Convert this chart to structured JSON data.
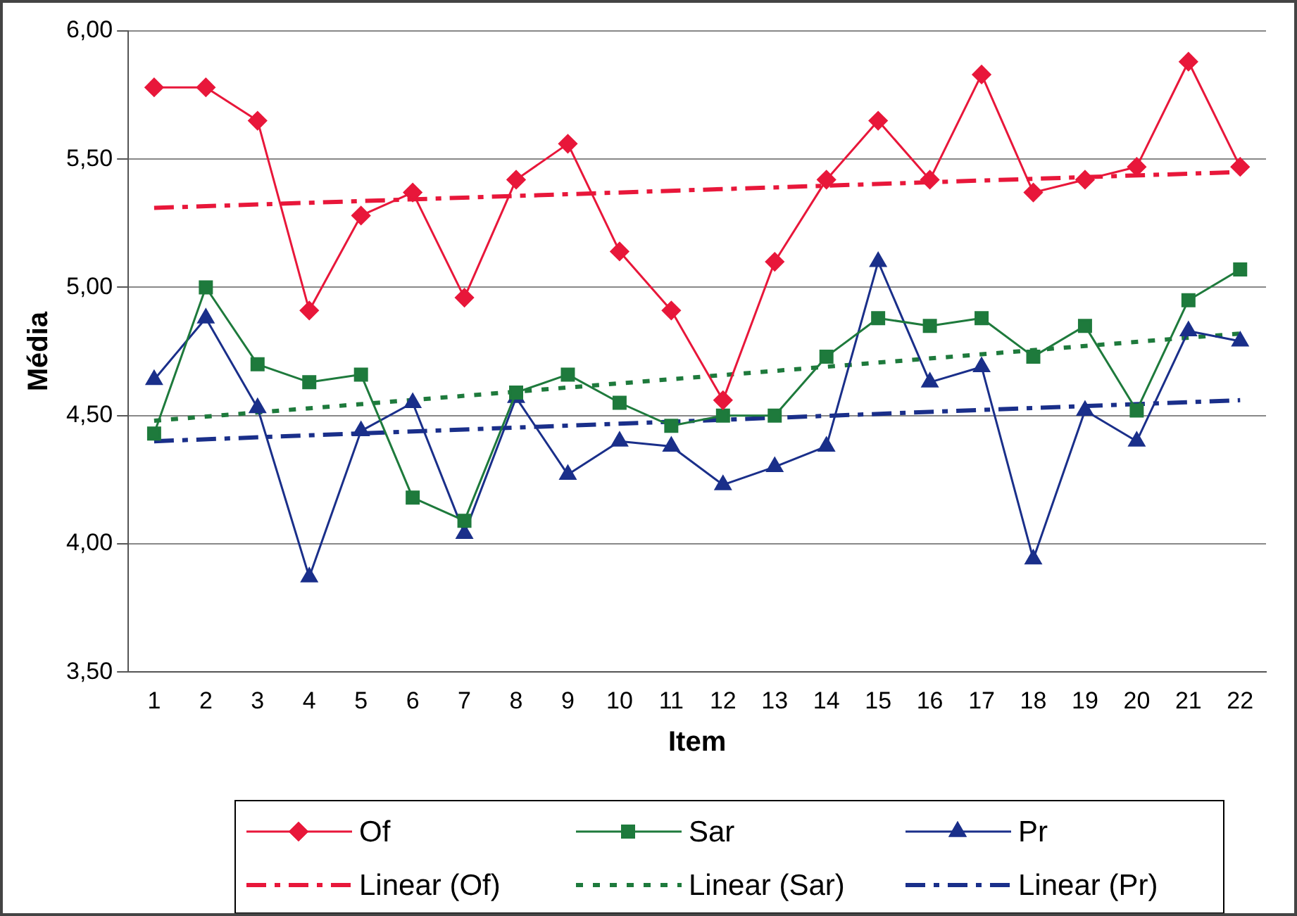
{
  "chart_data": {
    "type": "line",
    "xlabel": "Item",
    "ylabel": "Média",
    "x": [
      1,
      2,
      3,
      4,
      5,
      6,
      7,
      8,
      9,
      10,
      11,
      12,
      13,
      14,
      15,
      16,
      17,
      18,
      19,
      20,
      21,
      22
    ],
    "xlim": [
      0.5,
      22.5
    ],
    "xticks": [
      1,
      2,
      3,
      4,
      5,
      6,
      7,
      8,
      9,
      10,
      11,
      12,
      13,
      14,
      15,
      16,
      17,
      18,
      19,
      20,
      21,
      22
    ],
    "ylim": [
      3.5,
      6
    ],
    "yticks": [
      {
        "value": 3.5,
        "label": "3,50"
      },
      {
        "value": 4,
        "label": "4,00"
      },
      {
        "value": 4.5,
        "label": "4,50"
      },
      {
        "value": 5,
        "label": "5,00"
      },
      {
        "value": 5.5,
        "label": "5,50"
      },
      {
        "value": 6,
        "label": "6,00"
      }
    ],
    "grid": "y",
    "legend": "bottom",
    "series": [
      {
        "name": "Of",
        "color": "#e8173a",
        "marker": "diamond",
        "values": [
          5.78,
          5.78,
          5.65,
          4.91,
          5.28,
          5.37,
          4.96,
          5.42,
          5.56,
          5.14,
          4.91,
          4.56,
          5.1,
          5.42,
          5.65,
          5.42,
          5.83,
          5.37,
          5.42,
          5.47,
          5.88,
          5.47
        ]
      },
      {
        "name": "Sar",
        "color": "#1e7a3c",
        "marker": "square",
        "values": [
          4.43,
          5.0,
          4.7,
          4.63,
          4.66,
          4.18,
          4.09,
          4.59,
          4.66,
          4.55,
          4.46,
          4.5,
          4.5,
          4.73,
          4.88,
          4.85,
          4.88,
          4.73,
          4.85,
          4.52,
          4.95,
          5.07
        ]
      },
      {
        "name": "Pr",
        "color": "#1a2f8a",
        "marker": "triangle",
        "values": [
          4.64,
          4.88,
          4.53,
          3.87,
          4.44,
          4.55,
          4.04,
          4.57,
          4.27,
          4.4,
          4.38,
          4.23,
          4.3,
          4.38,
          5.1,
          4.63,
          4.69,
          3.94,
          4.52,
          4.4,
          4.83,
          4.79
        ]
      },
      {
        "name": "Linear (Of)",
        "color": "#e8173a",
        "marker": "none",
        "line_style": "dashed",
        "values": [
          5.31,
          null,
          null,
          null,
          null,
          null,
          null,
          null,
          null,
          null,
          null,
          null,
          null,
          null,
          null,
          null,
          null,
          null,
          null,
          null,
          null,
          5.45
        ]
      },
      {
        "name": "Linear (Sar)",
        "color": "#1e7a3c",
        "marker": "none",
        "line_style": "dotted",
        "values": [
          4.48,
          null,
          null,
          null,
          null,
          null,
          null,
          null,
          null,
          null,
          null,
          null,
          null,
          null,
          null,
          null,
          null,
          null,
          null,
          null,
          null,
          4.82
        ]
      },
      {
        "name": "Linear (Pr)",
        "color": "#1a2f8a",
        "marker": "none",
        "line_style": "dashed",
        "values": [
          4.4,
          null,
          null,
          null,
          null,
          null,
          null,
          null,
          null,
          null,
          null,
          null,
          null,
          null,
          null,
          null,
          null,
          null,
          null,
          null,
          null,
          4.56
        ]
      }
    ]
  }
}
